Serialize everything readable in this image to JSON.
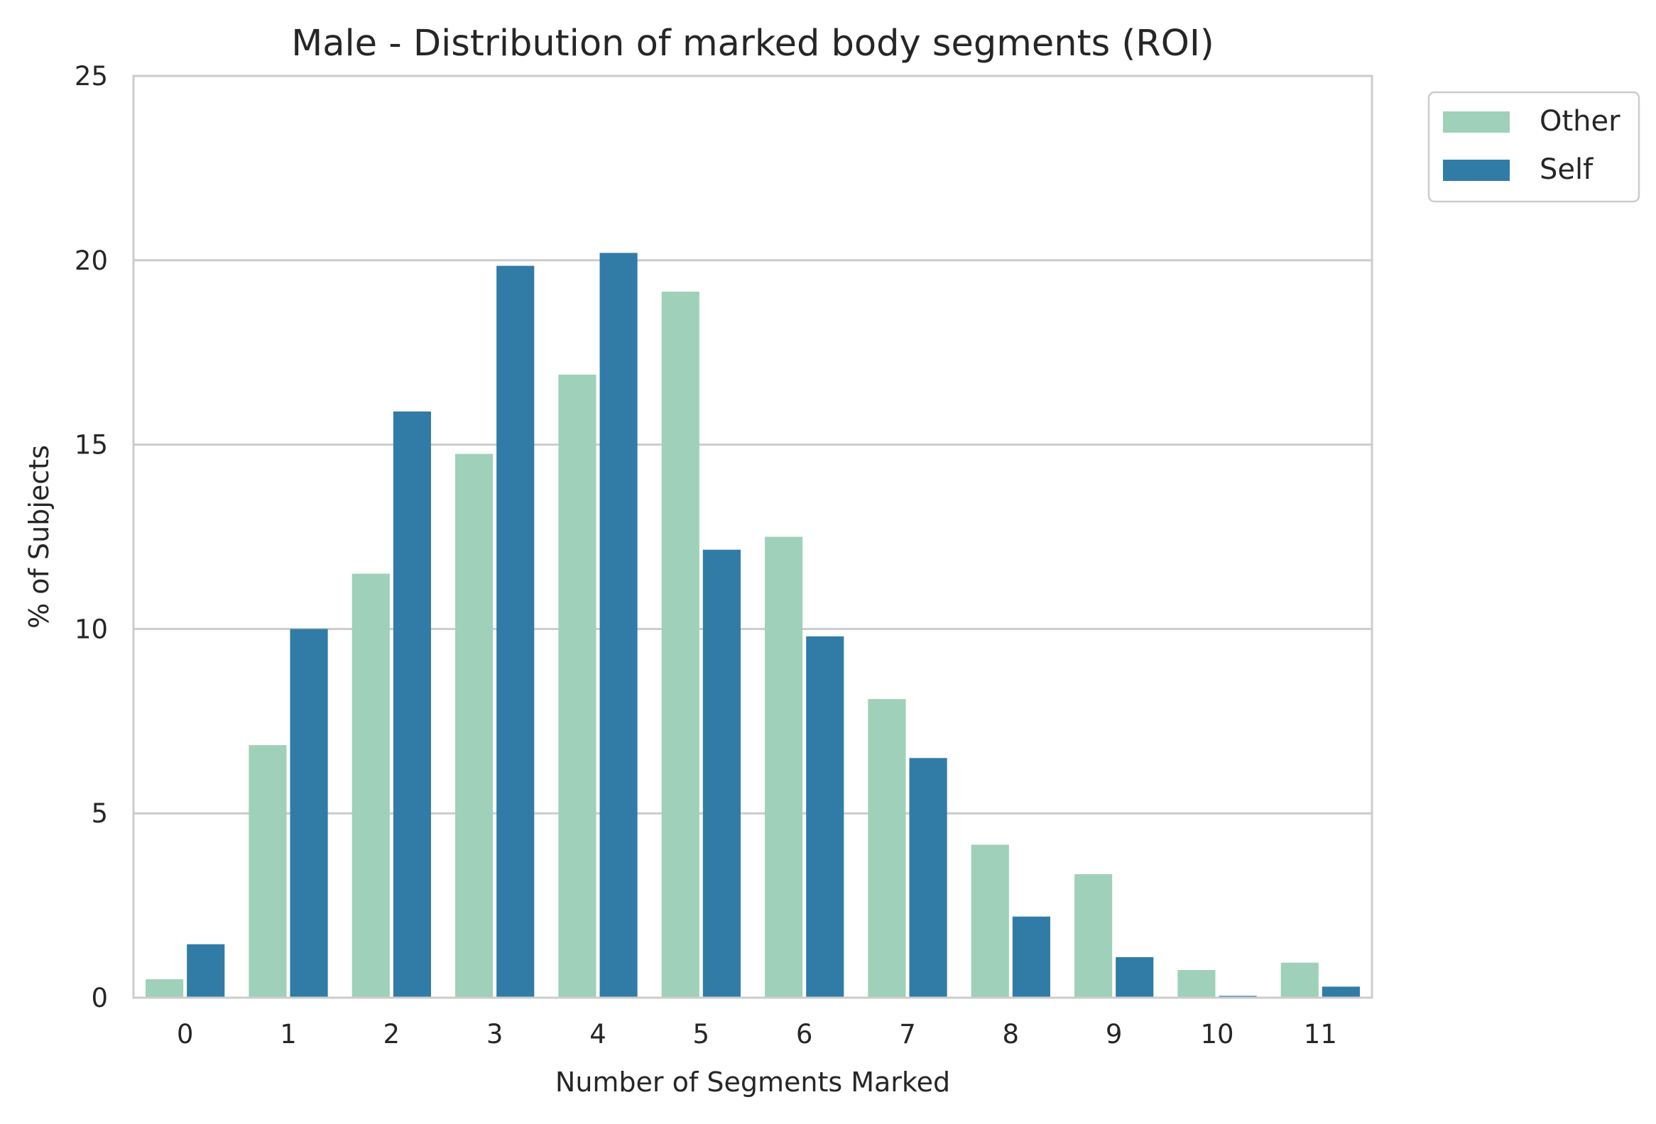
{
  "chart_data": {
    "type": "bar",
    "title": "Male - Distribution of marked body segments (ROI)",
    "xlabel": "Number of Segments Marked",
    "ylabel": "% of Subjects",
    "categories": [
      "0",
      "1",
      "2",
      "3",
      "4",
      "5",
      "6",
      "7",
      "8",
      "9",
      "10",
      "11"
    ],
    "ylim": [
      0,
      25
    ],
    "yticks": [
      "0",
      "5",
      "10",
      "15",
      "20",
      "25"
    ],
    "grid": "horizontal",
    "legend_position": "outside-top-right",
    "series": [
      {
        "name": "Other",
        "color": "#9fd0b9",
        "values": [
          0.5,
          6.85,
          11.5,
          14.75,
          16.9,
          19.15,
          12.5,
          8.1,
          4.15,
          3.35,
          0.75,
          0.95
        ]
      },
      {
        "name": "Self",
        "color": "#317ba7",
        "values": [
          1.45,
          10.0,
          15.9,
          19.85,
          20.2,
          12.15,
          9.8,
          6.5,
          2.2,
          1.1,
          0.05,
          0.3
        ]
      }
    ]
  }
}
